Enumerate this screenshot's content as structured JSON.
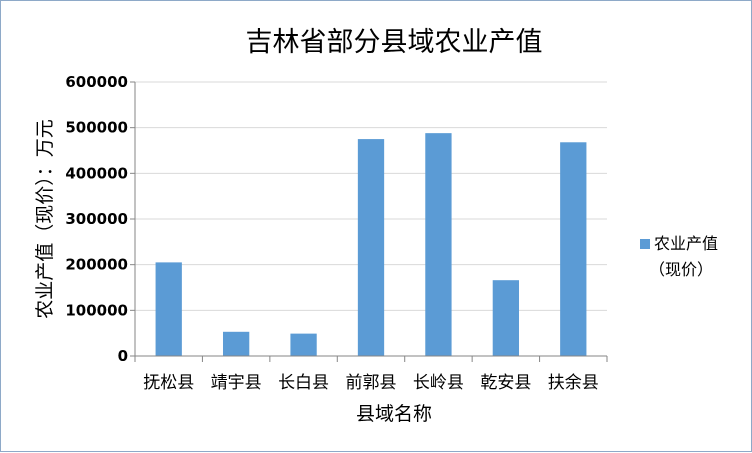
{
  "chart_data": {
    "type": "bar",
    "title": "吉林省部分县域农业产值",
    "xlabel": "县域名称",
    "ylabel": "农业产值（现价）：万元",
    "categories": [
      "抚松县",
      "靖宇县",
      "长白县",
      "前郭县",
      "长岭县",
      "乾安县",
      "扶余县"
    ],
    "series": [
      {
        "name": "农业产值（现价）",
        "legend_lines": [
          "农业产值",
          "（现价）"
        ],
        "values": [
          205000,
          53000,
          49000,
          475000,
          488000,
          166000,
          468000
        ],
        "color": "#5b9bd5"
      }
    ],
    "ylim": [
      0,
      600000
    ],
    "yticks": [
      "0",
      "100000",
      "200000",
      "300000",
      "400000",
      "500000",
      "600000"
    ],
    "grid": true,
    "legend_position": "right"
  }
}
